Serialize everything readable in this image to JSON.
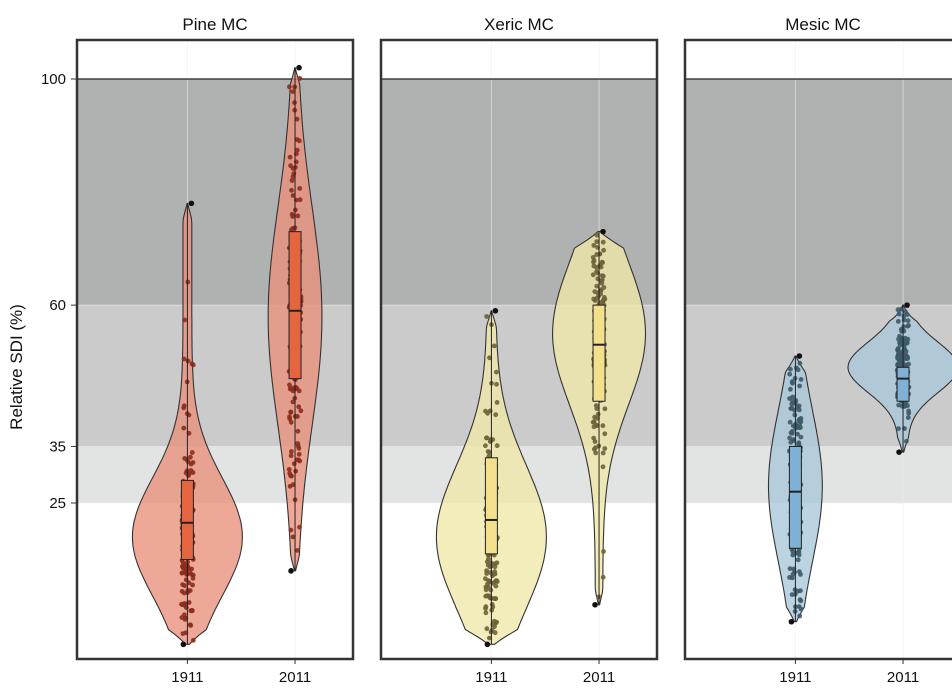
{
  "chart_data": {
    "type": "violin",
    "ylabel": "Relative SDI (%)",
    "y_ticks": [
      25,
      35,
      60,
      100
    ],
    "ylim": [
      -1,
      104
    ],
    "x_categories": [
      "1911",
      "2011"
    ],
    "grid": true,
    "zones": [
      {
        "from": 25,
        "to": 35,
        "color": "#e2e4e4"
      },
      {
        "from": 35,
        "to": 60,
        "color": "#cbcbcb"
      },
      {
        "from": 60,
        "to": 100,
        "color": "#b0b1b1"
      }
    ],
    "reference_line": 100,
    "panels": [
      {
        "title": "Pine MC",
        "fill": "#e8907a",
        "box_fill": "#e4653f",
        "point_color": "#8b2e1c",
        "groups": [
          {
            "x": "1911",
            "min": 0,
            "q1": 15,
            "median": 21.5,
            "q3": 29,
            "max": 78,
            "range": [
              0,
              78
            ],
            "mode": 19,
            "max_halfwidth": 0.45
          },
          {
            "x": "2011",
            "min": 13,
            "q1": 47,
            "median": 59,
            "q3": 73,
            "max": 102,
            "range": [
              13,
              102
            ],
            "mode": 58,
            "max_halfwidth": 0.22
          }
        ]
      },
      {
        "title": "Xeric MC",
        "fill": "#f0e7a8",
        "box_fill": "#f2e08c",
        "point_color": "#6e6238",
        "groups": [
          {
            "x": "1911",
            "min": 0,
            "q1": 16,
            "median": 22,
            "q3": 33,
            "max": 59,
            "range": [
              0,
              59
            ],
            "mode": 19,
            "max_halfwidth": 0.45
          },
          {
            "x": "2011",
            "min": 7,
            "q1": 43,
            "median": 53,
            "q3": 60,
            "max": 73,
            "range": [
              7,
              73
            ],
            "mode": 55,
            "max_halfwidth": 0.38
          }
        ]
      },
      {
        "title": "Mesic MC",
        "fill": "#a9c6d8",
        "box_fill": "#7fb0d6",
        "point_color": "#3c5a6a",
        "groups": [
          {
            "x": "1911",
            "min": 4,
            "q1": 17,
            "median": 27,
            "q3": 35,
            "max": 51,
            "range": [
              4,
              51
            ],
            "mode": 28,
            "max_halfwidth": 0.22
          },
          {
            "x": "2011",
            "min": 34,
            "q1": 43,
            "median": 47,
            "q3": 49,
            "max": 60,
            "range": [
              34,
              60
            ],
            "mode": 49,
            "max_halfwidth": 0.45
          }
        ]
      }
    ]
  }
}
